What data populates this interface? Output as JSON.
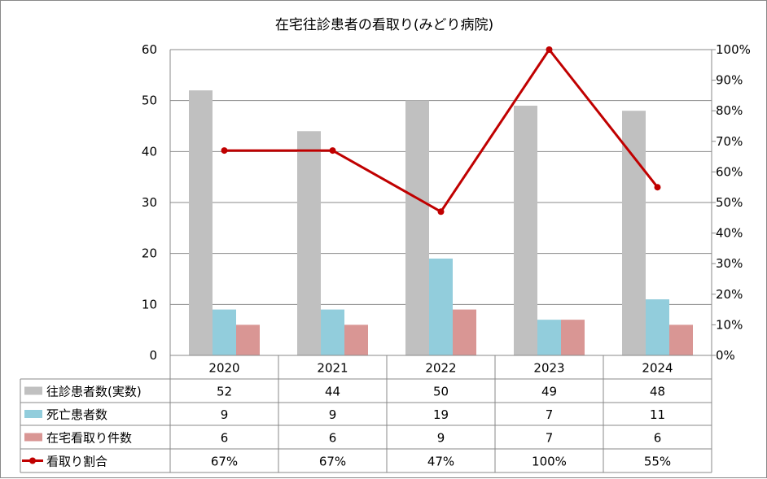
{
  "chart_data": {
    "type": "bar",
    "title": "在宅往診患者の看取り(みどり病院)",
    "categories": [
      "2020",
      "2021",
      "2022",
      "2023",
      "2024"
    ],
    "y_left": {
      "min": 0,
      "max": 60,
      "step": 10,
      "ticks": [
        "0",
        "10",
        "20",
        "30",
        "40",
        "50",
        "60"
      ]
    },
    "y_right": {
      "min": 0,
      "max": 100,
      "step": 10,
      "ticks": [
        "0%",
        "10%",
        "20%",
        "30%",
        "40%",
        "50%",
        "60%",
        "70%",
        "80%",
        "90%",
        "100%"
      ]
    },
    "series": [
      {
        "name": "往診患者数(実数)",
        "kind": "bar",
        "axis": "left",
        "color": "#c0c0c0",
        "values": [
          52,
          44,
          50,
          49,
          48
        ],
        "labels": [
          "52",
          "44",
          "50",
          "49",
          "48"
        ]
      },
      {
        "name": "死亡患者数",
        "kind": "bar",
        "axis": "left",
        "color": "#92cddc",
        "values": [
          9,
          9,
          19,
          7,
          11
        ],
        "labels": [
          "9",
          "9",
          "19",
          "7",
          "11"
        ]
      },
      {
        "name": "在宅看取り件数",
        "kind": "bar",
        "axis": "left",
        "color": "#d99694",
        "values": [
          6,
          6,
          9,
          7,
          6
        ],
        "labels": [
          "6",
          "6",
          "9",
          "7",
          "6"
        ]
      },
      {
        "name": "看取り割合",
        "kind": "line",
        "axis": "right",
        "color": "#c00000",
        "values": [
          67,
          67,
          47,
          100,
          55
        ],
        "labels": [
          "67%",
          "67%",
          "47%",
          "100%",
          "55%"
        ]
      }
    ],
    "grid": true,
    "legend": "data-table-below"
  }
}
